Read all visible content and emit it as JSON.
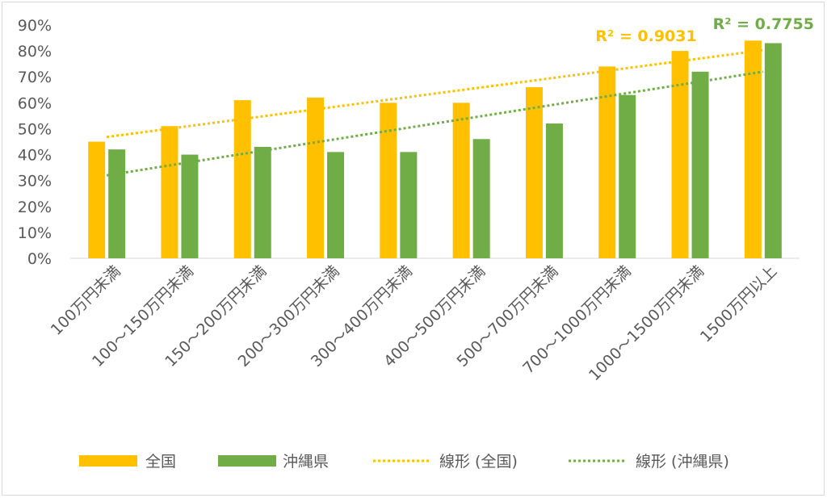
{
  "chart_data": {
    "type": "bar",
    "categories": [
      "100万円未満",
      "100～150万円未満",
      "150～200万円未満",
      "200～300万円未満",
      "300～400万円未満",
      "400～500万円未満",
      "500～700万円未満",
      "700～1000万円未満",
      "1000～1500万円未満",
      "1500万円以上"
    ],
    "series": [
      {
        "name": "全国",
        "color": "#ffc000",
        "values": [
          45,
          51,
          61,
          62,
          60,
          60,
          66,
          74,
          80,
          84
        ]
      },
      {
        "name": "沖縄県",
        "color": "#70ad47",
        "values": [
          42,
          40,
          43,
          41,
          41,
          46,
          52,
          63,
          72,
          83
        ]
      }
    ],
    "trendlines": [
      {
        "name": "線形 (全国)",
        "color": "#ffc000",
        "r2_label": "R² = 0.9031",
        "start": 46.8,
        "end": 80.3
      },
      {
        "name": "線形 (沖縄県)",
        "color": "#70ad47",
        "r2_label": "R² = 0.7755",
        "start": 32.0,
        "end": 72.0
      }
    ],
    "yticks": [
      "0%",
      "10%",
      "20%",
      "30%",
      "40%",
      "50%",
      "60%",
      "70%",
      "80%",
      "90%"
    ],
    "ylim": [
      0,
      90
    ],
    "legend_position": "bottom"
  }
}
